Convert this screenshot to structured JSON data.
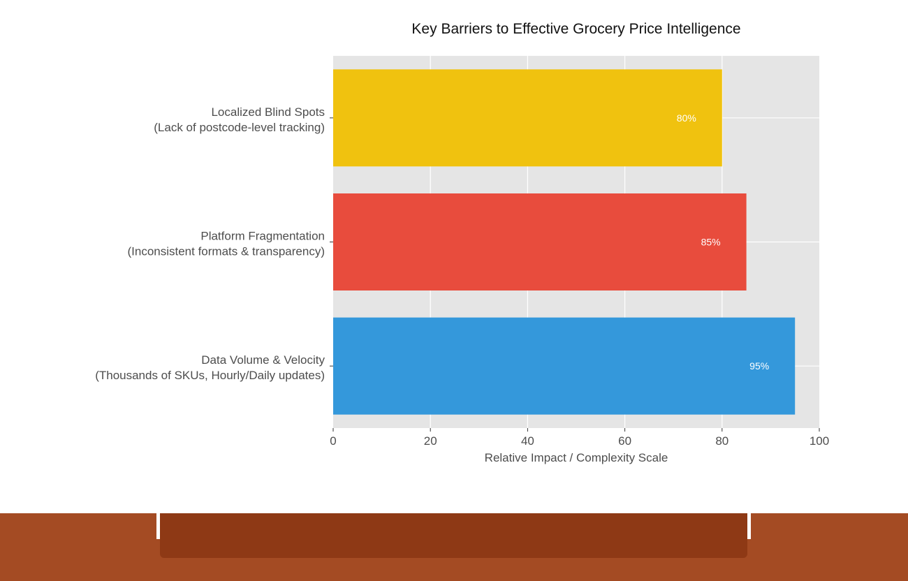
{
  "chart_data": {
    "type": "bar",
    "orientation": "horizontal",
    "title": "Key Barriers to Effective Grocery Price Intelligence",
    "xlabel": "Relative Impact / Complexity Scale",
    "ylabel": "",
    "xlim": [
      0,
      100
    ],
    "xticks": [
      "0",
      "20",
      "40",
      "60",
      "80",
      "100"
    ],
    "grid": true,
    "categories": [
      {
        "line1": "Localized Blind Spots",
        "line2": "(Lack of postcode-level tracking)",
        "value": 80,
        "data_label": "80%",
        "color": "#f0c20f"
      },
      {
        "line1": "Platform Fragmentation",
        "line2": "(Inconsistent formats & transparency)",
        "value": 85,
        "data_label": "85%",
        "color": "#e84c3d"
      },
      {
        "line1": "Data Volume & Velocity",
        "line2": "(Thousands of SKUs, Hourly/Daily updates)",
        "value": 95,
        "data_label": "95%",
        "color": "#3498db"
      }
    ]
  },
  "colors": {
    "plot_background": "#e5e5e5",
    "gridline": "#ffffff",
    "footer_band": "#a44b23",
    "footer_inner": "#8e3915"
  }
}
